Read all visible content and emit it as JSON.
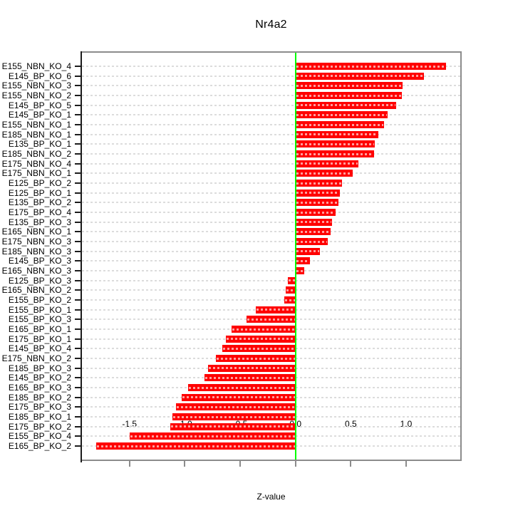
{
  "chart_data": {
    "type": "bar",
    "orientation": "horizontal",
    "title": "Nr4a2",
    "xlabel": "Z-value",
    "ylabel": "",
    "categories": [
      "E155_NBN_KO_4",
      "E145_BP_KO_6",
      "E155_NBN_KO_3",
      "E155_NBN_KO_2",
      "E145_BP_KO_5",
      "E145_BP_KO_1",
      "E155_NBN_KO_1",
      "E185_NBN_KO_1",
      "E135_BP_KO_1",
      "E185_NBN_KO_2",
      "E175_NBN_KO_4",
      "E175_NBN_KO_1",
      "E125_BP_KO_2",
      "E125_BP_KO_1",
      "E135_BP_KO_2",
      "E175_BP_KO_4",
      "E135_BP_KO_3",
      "E165_NBN_KO_1",
      "E175_NBN_KO_3",
      "E185_NBN_KO_3",
      "E145_BP_KO_3",
      "E165_NBN_KO_3",
      "E125_BP_KO_3",
      "E165_NBN_KO_2",
      "E155_BP_KO_2",
      "E155_BP_KO_1",
      "E155_BP_KO_3",
      "E165_BP_KO_1",
      "E175_BP_KO_1",
      "E145_BP_KO_4",
      "E175_NBN_KO_2",
      "E185_BP_KO_3",
      "E145_BP_KO_2",
      "E165_BP_KO_3",
      "E185_BP_KO_2",
      "E175_BP_KO_3",
      "E185_BP_KO_1",
      "E175_BP_KO_2",
      "E155_BP_KO_4",
      "E165_BP_KO_2"
    ],
    "values": [
      1.36,
      1.16,
      0.97,
      0.96,
      0.91,
      0.83,
      0.8,
      0.75,
      0.72,
      0.71,
      0.57,
      0.52,
      0.42,
      0.4,
      0.39,
      0.36,
      0.33,
      0.32,
      0.29,
      0.22,
      0.13,
      0.08,
      -0.07,
      -0.09,
      -0.1,
      -0.36,
      -0.44,
      -0.58,
      -0.63,
      -0.66,
      -0.72,
      -0.79,
      -0.82,
      -0.97,
      -1.03,
      -1.08,
      -1.11,
      -1.13,
      -1.5,
      -1.8
    ],
    "xlim": [
      -1.93,
      1.49
    ],
    "xtick_values": [
      -1.5,
      -1.0,
      -0.5,
      0.0,
      0.5,
      1.0
    ],
    "xtick_labels": [
      "-1.5",
      "-1.0",
      "-0.5",
      "0.0",
      "0.5",
      "1.0"
    ],
    "grid": true,
    "legend": false,
    "colors": {
      "bar": "#ff0000",
      "zero_line": "#00ff00",
      "grid": "#dcdcdc",
      "box": "#8c8c8c",
      "axis": "#1c1c1c",
      "text": "#000000"
    }
  }
}
